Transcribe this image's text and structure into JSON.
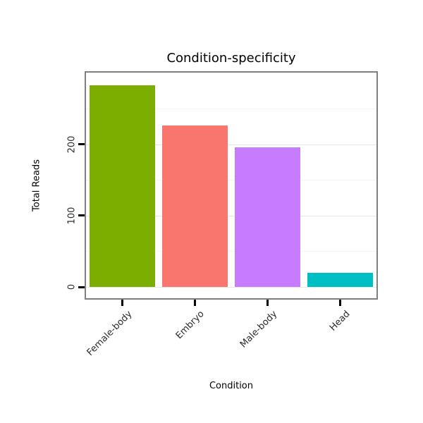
{
  "chart_data": {
    "type": "bar",
    "title": "Condition-specificity",
    "xlabel": "Condition",
    "ylabel": "Total Reads",
    "categories": [
      "Female-body",
      "Embryo",
      "Male-body",
      "Head"
    ],
    "values": [
      283,
      227,
      196,
      20
    ],
    "colors": [
      "#7CAE00",
      "#F8766D",
      "#C77CFF",
      "#00BFC4"
    ],
    "ylim": [
      0,
      285
    ],
    "yticks": [
      0,
      100,
      200
    ],
    "minor_gridlines": [
      50,
      150,
      250
    ],
    "grid": true,
    "legend": "none",
    "panel_border_color": "#7f7f7f"
  }
}
